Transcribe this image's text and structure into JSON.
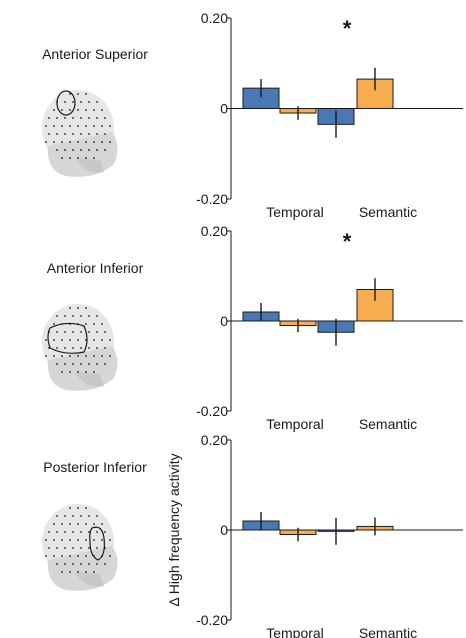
{
  "ylabel": "Δ High frequency activity",
  "colors": {
    "blue": "#4a78b5",
    "orange": "#f7ad4d",
    "outline": "#1a1a1a"
  },
  "chart_data": [
    {
      "type": "bar",
      "title": "Anterior Superior",
      "significance_mark": "*",
      "categories": [
        "Temporal",
        "Semantic"
      ],
      "ylim": [
        -0.2,
        0.2
      ],
      "yticks": [
        "0.20",
        "0",
        "-0.20"
      ],
      "bars": [
        {
          "category": "Temporal",
          "color": "blue",
          "value": 0.045,
          "err": 0.02
        },
        {
          "category": "Temporal",
          "color": "orange",
          "value": -0.01,
          "err": 0.015
        },
        {
          "category": "Semantic",
          "color": "blue",
          "value": -0.035,
          "err": 0.03
        },
        {
          "category": "Semantic",
          "color": "orange",
          "value": 0.065,
          "err": 0.025
        }
      ]
    },
    {
      "type": "bar",
      "title": "Anterior Inferior",
      "significance_mark": "*",
      "categories": [
        "Temporal",
        "Semantic"
      ],
      "ylim": [
        -0.2,
        0.2
      ],
      "yticks": [
        "0.20",
        "0",
        "-0.20"
      ],
      "bars": [
        {
          "category": "Temporal",
          "color": "blue",
          "value": 0.02,
          "err": 0.02
        },
        {
          "category": "Temporal",
          "color": "orange",
          "value": -0.01,
          "err": 0.015
        },
        {
          "category": "Semantic",
          "color": "blue",
          "value": -0.025,
          "err": 0.03
        },
        {
          "category": "Semantic",
          "color": "orange",
          "value": 0.07,
          "err": 0.025
        }
      ]
    },
    {
      "type": "bar",
      "title": "Posterior Inferior",
      "significance_mark": "",
      "categories": [
        "Temporal",
        "Semantic"
      ],
      "ylim": [
        -0.2,
        0.2
      ],
      "yticks": [
        "0.20",
        "0",
        "-0.20"
      ],
      "bars": [
        {
          "category": "Temporal",
          "color": "blue",
          "value": 0.02,
          "err": 0.02
        },
        {
          "category": "Temporal",
          "color": "orange",
          "value": -0.01,
          "err": 0.015
        },
        {
          "category": "Semantic",
          "color": "blue",
          "value": -0.003,
          "err": 0.03
        },
        {
          "category": "Semantic",
          "color": "orange",
          "value": 0.008,
          "err": 0.02
        }
      ]
    }
  ]
}
